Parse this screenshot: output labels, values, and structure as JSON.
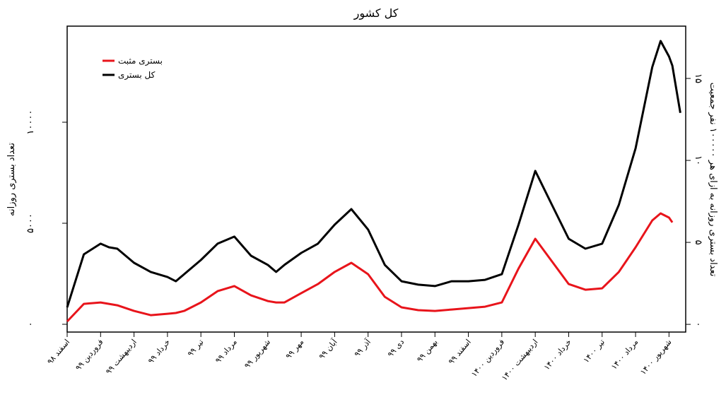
{
  "chart_data": {
    "type": "line",
    "title": "کل کشور",
    "y_label": "تعداد بستری روزانه",
    "y2_label": "تعداد بستری روزانه به ازای هر ۱۰۰۰۰۰ نفر جمعیت",
    "x": [
      0,
      0.5,
      1,
      1.25,
      1.5,
      2,
      2.5,
      3,
      3.25,
      3.5,
      4,
      4.5,
      5,
      5.5,
      6,
      6.25,
      6.5,
      7,
      7.5,
      8,
      8.5,
      9,
      9.5,
      10,
      10.5,
      11,
      11.5,
      12,
      12.5,
      13,
      13.5,
      14,
      14.5,
      15,
      15.5,
      16,
      16.5,
      17,
      17.5,
      17.75,
      18,
      18.1,
      18.25,
      18.34
    ],
    "series": [
      {
        "name": "بستری مثبت",
        "color": "#e8141b",
        "values": [
          140,
          1010,
          1080,
          1010,
          940,
          660,
          450,
          520,
          560,
          660,
          1080,
          1640,
          1890,
          1430,
          1150,
          1080,
          1080,
          1540,
          1990,
          2590,
          3040,
          2480,
          1360,
          840,
          700,
          660,
          730,
          800,
          870,
          1080,
          2760,
          4230,
          3110,
          1990,
          1710,
          1780,
          2590,
          3810,
          5140,
          5490,
          5280,
          5040,
          null,
          null
        ]
      },
      {
        "name": "کل بستری",
        "color": "#000000",
        "values": [
          840,
          3460,
          3990,
          3810,
          3740,
          3040,
          2590,
          2340,
          2130,
          2480,
          3180,
          3990,
          4340,
          3390,
          2940,
          2590,
          2940,
          3530,
          3990,
          4930,
          5700,
          4690,
          2940,
          2130,
          1960,
          1890,
          2130,
          2130,
          2200,
          2480,
          4930,
          7590,
          5910,
          4230,
          3740,
          3990,
          5910,
          8710,
          12730,
          14020,
          13250,
          12800,
          11330,
          10460
        ]
      }
    ],
    "xlim": [
      0,
      18.5
    ],
    "xticks": [
      {
        "value": 0,
        "label": "اسفند ۹۸"
      },
      {
        "value": 1,
        "label": "فروردین ۹۹"
      },
      {
        "value": 2,
        "label": "اردیبهشت ۹۹"
      },
      {
        "value": 3,
        "label": "خرداد ۹۹"
      },
      {
        "value": 4,
        "label": "تیر ۹۹"
      },
      {
        "value": 5,
        "label": "مرداد ۹۹"
      },
      {
        "value": 6,
        "label": "شهریور ۹۹"
      },
      {
        "value": 7,
        "label": "مهر ۹۹"
      },
      {
        "value": 8,
        "label": "آبان ۹۹"
      },
      {
        "value": 9,
        "label": "آذر ۹۹"
      },
      {
        "value": 10,
        "label": "دی ۹۹"
      },
      {
        "value": 11,
        "label": "بهمن ۹۹"
      },
      {
        "value": 12,
        "label": "اسفند ۹۹"
      },
      {
        "value": 13,
        "label": "فروردین ۱۴۰۰"
      },
      {
        "value": 14,
        "label": "اردیبهشت ۱۴۰۰"
      },
      {
        "value": 15,
        "label": "خرداد ۱۴۰۰"
      },
      {
        "value": 16,
        "label": "تیر ۱۴۰۰"
      },
      {
        "value": 17,
        "label": "مرداد ۱۴۰۰"
      },
      {
        "value": 18,
        "label": "شهریور ۱۴۰۰"
      }
    ],
    "ylim": [
      -385,
      14755
    ],
    "yticks": [
      {
        "value": 0,
        "label": "۰"
      },
      {
        "value": 5000,
        "label": "۵۰۰۰"
      },
      {
        "value": 10000,
        "label": "۱۰۰۰۰"
      }
    ],
    "y2lim": [
      -0.47,
      18.19
    ],
    "y2ticks": [
      {
        "value": 0,
        "label": "۰"
      },
      {
        "value": 5,
        "label": "۵"
      },
      {
        "value": 10,
        "label": "۱۰"
      },
      {
        "value": 15,
        "label": "۱۵"
      }
    ],
    "legend": "upper left"
  }
}
